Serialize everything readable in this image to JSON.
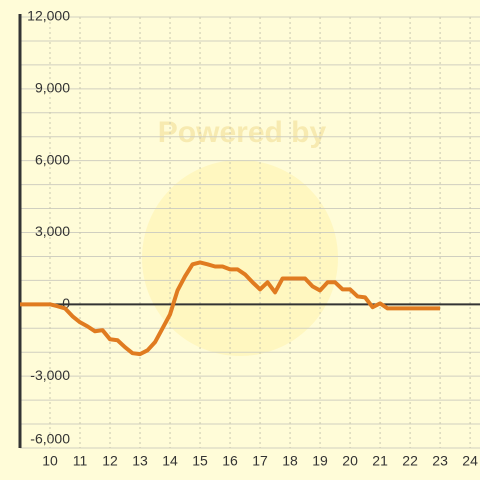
{
  "chart_data": {
    "type": "line",
    "watermark": "Powered by",
    "x": [
      9,
      10,
      10.25,
      10.5,
      10.75,
      11,
      11.25,
      11.5,
      11.75,
      12,
      12.25,
      12.5,
      12.75,
      13,
      13.25,
      13.5,
      13.75,
      14,
      14.25,
      14.5,
      14.75,
      15,
      15.25,
      15.5,
      15.75,
      16,
      16.25,
      16.5,
      16.75,
      17,
      17.25,
      17.5,
      17.75,
      18,
      18.25,
      18.5,
      18.75,
      19,
      19.25,
      19.5,
      19.75,
      20,
      20.25,
      20.5,
      20.75,
      21,
      21.25,
      23
    ],
    "series": [
      {
        "color": "#e07b20",
        "values": [
          0,
          0,
          -80,
          -170,
          -500,
          -750,
          -920,
          -1125,
          -1080,
          -1460,
          -1500,
          -1790,
          -2040,
          -2080,
          -1920,
          -1580,
          -1000,
          -420,
          580,
          1170,
          1670,
          1750,
          1670,
          1580,
          1580,
          1460,
          1460,
          1250,
          920,
          625,
          920,
          500,
          1080,
          1080,
          1080,
          1080,
          750,
          580,
          920,
          920,
          625,
          625,
          330,
          290,
          -120,
          40,
          -170,
          -170
        ]
      }
    ],
    "xlim": [
      9,
      24.33
    ],
    "xticks": [
      10,
      11,
      12,
      13,
      14,
      15,
      16,
      17,
      18,
      19,
      20,
      21,
      22,
      23,
      24
    ],
    "ylim": [
      -6000,
      12000
    ],
    "yticks": [
      {
        "value": -6000,
        "label": "-6,000"
      },
      {
        "value": -3000,
        "label": "-3,000"
      },
      0,
      {
        "value": 3000,
        "label": "3,000"
      },
      {
        "value": 6000,
        "label": "6,000"
      },
      {
        "value": 9000,
        "label": "9,000"
      },
      {
        "value": 12000,
        "label": "12,000"
      }
    ],
    "grid": true
  }
}
